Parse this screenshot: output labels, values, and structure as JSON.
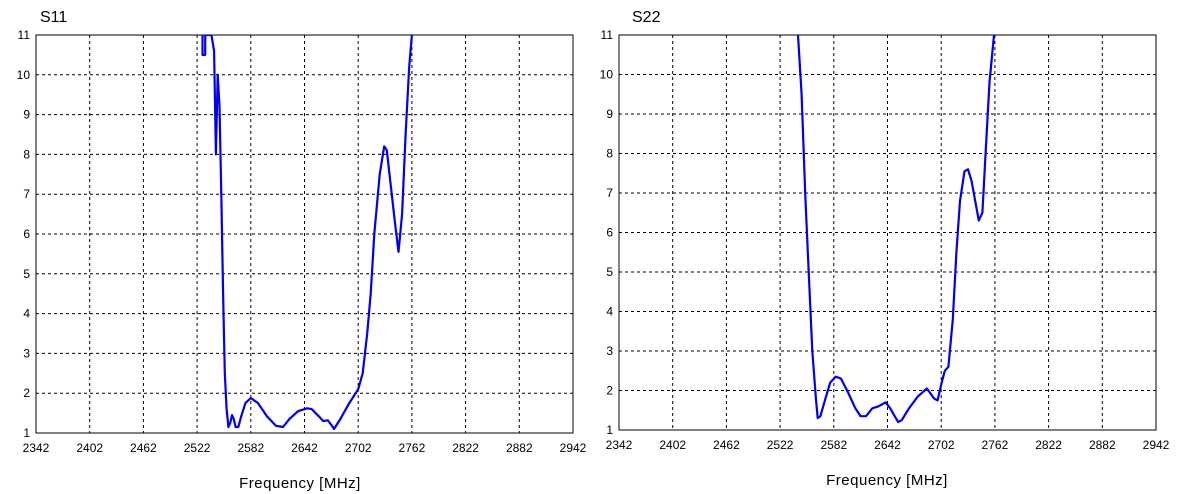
{
  "chart_data": [
    {
      "type": "line",
      "title": "S11",
      "xlabel": "Frequency [MHz]",
      "ylabel": "",
      "xlim": [
        2342,
        2942
      ],
      "ylim": [
        1,
        11
      ],
      "xticks": [
        2342,
        2402,
        2462,
        2522,
        2582,
        2642,
        2702,
        2762,
        2822,
        2882,
        2942
      ],
      "yticks": [
        1,
        2,
        3,
        4,
        5,
        6,
        7,
        8,
        9,
        10,
        11
      ],
      "grid": true,
      "color": "#0000ee",
      "series": [
        {
          "points": [
            [
              2528,
              11
            ],
            [
              2528,
              10.5
            ],
            [
              2531,
              10.5
            ],
            [
              2531,
              11
            ],
            [
              2538,
              11
            ],
            [
              2541,
              10.6
            ],
            [
              2543,
              8.0
            ],
            [
              2545,
              10.0
            ],
            [
              2547,
              9.2
            ],
            [
              2549,
              7.0
            ],
            [
              2551,
              4.5
            ],
            [
              2553,
              2.5
            ],
            [
              2555,
              1.6
            ],
            [
              2557,
              1.15
            ],
            [
              2559,
              1.25
            ],
            [
              2561,
              1.45
            ],
            [
              2563,
              1.35
            ],
            [
              2565,
              1.15
            ],
            [
              2568,
              1.15
            ],
            [
              2571,
              1.4
            ],
            [
              2576,
              1.75
            ],
            [
              2582,
              1.88
            ],
            [
              2590,
              1.75
            ],
            [
              2600,
              1.42
            ],
            [
              2610,
              1.18
            ],
            [
              2618,
              1.15
            ],
            [
              2625,
              1.35
            ],
            [
              2635,
              1.55
            ],
            [
              2645,
              1.62
            ],
            [
              2650,
              1.6
            ],
            [
              2658,
              1.42
            ],
            [
              2663,
              1.3
            ],
            [
              2668,
              1.32
            ],
            [
              2672,
              1.2
            ],
            [
              2675,
              1.1
            ],
            [
              2682,
              1.35
            ],
            [
              2692,
              1.75
            ],
            [
              2702,
              2.1
            ],
            [
              2707,
              2.5
            ],
            [
              2712,
              3.5
            ],
            [
              2716,
              4.5
            ],
            [
              2720,
              6.0
            ],
            [
              2726,
              7.5
            ],
            [
              2731,
              8.2
            ],
            [
              2734,
              8.1
            ],
            [
              2738,
              7.3
            ],
            [
              2743,
              6.3
            ],
            [
              2747,
              5.55
            ],
            [
              2751,
              6.5
            ],
            [
              2755,
              8.5
            ],
            [
              2759,
              10.2
            ],
            [
              2762,
              11.0
            ]
          ]
        }
      ]
    },
    {
      "type": "line",
      "title": "S22",
      "xlabel": "Frequency [MHz]",
      "ylabel": "",
      "xlim": [
        2342,
        2942
      ],
      "ylim": [
        1,
        11
      ],
      "xticks": [
        2342,
        2402,
        2462,
        2522,
        2582,
        2642,
        2702,
        2762,
        2822,
        2882,
        2942
      ],
      "yticks": [
        1,
        2,
        3,
        4,
        5,
        6,
        7,
        8,
        9,
        10,
        11
      ],
      "grid": true,
      "color": "#0000ee",
      "series": [
        {
          "points": [
            [
              2542,
              11.0
            ],
            [
              2546,
              9.5
            ],
            [
              2550,
              7.0
            ],
            [
              2554,
              5.0
            ],
            [
              2558,
              3.0
            ],
            [
              2562,
              1.8
            ],
            [
              2564,
              1.3
            ],
            [
              2567,
              1.35
            ],
            [
              2572,
              1.75
            ],
            [
              2578,
              2.2
            ],
            [
              2584,
              2.35
            ],
            [
              2590,
              2.3
            ],
            [
              2598,
              1.95
            ],
            [
              2606,
              1.55
            ],
            [
              2612,
              1.35
            ],
            [
              2618,
              1.35
            ],
            [
              2625,
              1.55
            ],
            [
              2632,
              1.6
            ],
            [
              2640,
              1.7
            ],
            [
              2645,
              1.55
            ],
            [
              2650,
              1.35
            ],
            [
              2654,
              1.2
            ],
            [
              2658,
              1.25
            ],
            [
              2666,
              1.55
            ],
            [
              2676,
              1.85
            ],
            [
              2686,
              2.05
            ],
            [
              2694,
              1.8
            ],
            [
              2698,
              1.75
            ],
            [
              2702,
              2.15
            ],
            [
              2706,
              2.5
            ],
            [
              2710,
              2.6
            ],
            [
              2715,
              3.8
            ],
            [
              2719,
              5.5
            ],
            [
              2723,
              6.8
            ],
            [
              2728,
              7.55
            ],
            [
              2732,
              7.6
            ],
            [
              2736,
              7.3
            ],
            [
              2740,
              6.8
            ],
            [
              2744,
              6.3
            ],
            [
              2748,
              6.5
            ],
            [
              2752,
              8.2
            ],
            [
              2756,
              9.8
            ],
            [
              2761,
              11.0
            ]
          ]
        }
      ]
    }
  ]
}
